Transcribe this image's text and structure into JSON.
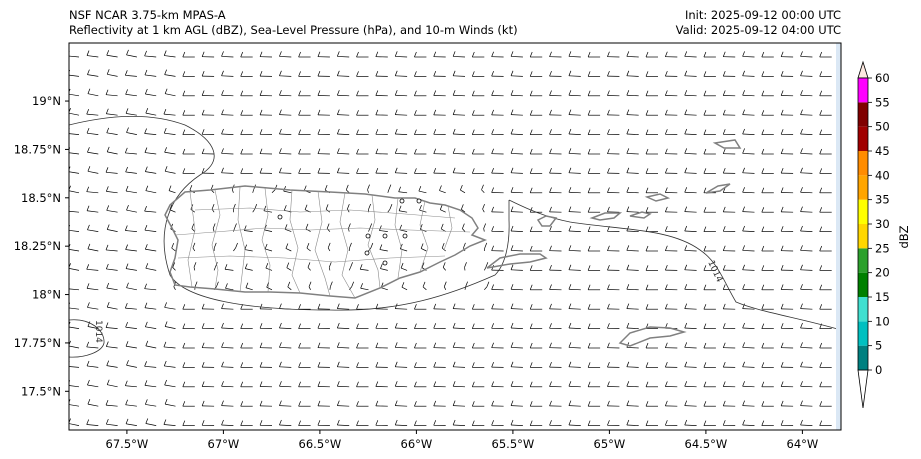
{
  "title": {
    "line1": "NSF NCAR 3.75-km MPAS-A",
    "line2": "Reflectivity at 1 km AGL (dBZ), Sea-Level Pressure (hPa), and 10-m Winds (kt)",
    "init": "Init: 2025-09-12 00:00 UTC",
    "valid": "Valid: 2025-09-12 04:00 UTC"
  },
  "map": {
    "lon_range": [
      -67.8,
      -63.8
    ],
    "lat_range": [
      17.3,
      19.3
    ],
    "x_ticks": [
      {
        "lon": -67.5,
        "label": "67.5°W"
      },
      {
        "lon": -67.0,
        "label": "67°W"
      },
      {
        "lon": -66.5,
        "label": "66.5°W"
      },
      {
        "lon": -66.0,
        "label": "66°W"
      },
      {
        "lon": -65.5,
        "label": "65.5°W"
      },
      {
        "lon": -65.0,
        "label": "65°W"
      },
      {
        "lon": -64.5,
        "label": "64.5°W"
      },
      {
        "lon": -64.0,
        "label": "64°W"
      }
    ],
    "y_ticks": [
      {
        "lat": 19.0,
        "label": "19°N"
      },
      {
        "lat": 18.75,
        "label": "18.75°N"
      },
      {
        "lat": 18.5,
        "label": "18.5°N"
      },
      {
        "lat": 18.25,
        "label": "18.25°N"
      },
      {
        "lat": 18.0,
        "label": "18°N"
      },
      {
        "lat": 17.75,
        "label": "17.75°N"
      },
      {
        "lat": 17.5,
        "label": "17.5°N"
      }
    ],
    "isobar_label_east": "1014",
    "isobar_label_west": "1014"
  },
  "colorbar": {
    "label": "dBZ",
    "levels": [
      0,
      5,
      10,
      15,
      20,
      25,
      30,
      35,
      40,
      45,
      50,
      55,
      60
    ],
    "colors": [
      "#008080",
      "#00c0c0",
      "#40e0d0",
      "#008000",
      "#2ca02c",
      "#ffd700",
      "#ffff00",
      "#ffa500",
      "#ff8c00",
      "#a00000",
      "#800000",
      "#ff00ff"
    ],
    "top_color": "#fde8e0"
  },
  "colors": {
    "coastline": "#808080",
    "isobar": "#333333",
    "barb": "#000000"
  }
}
